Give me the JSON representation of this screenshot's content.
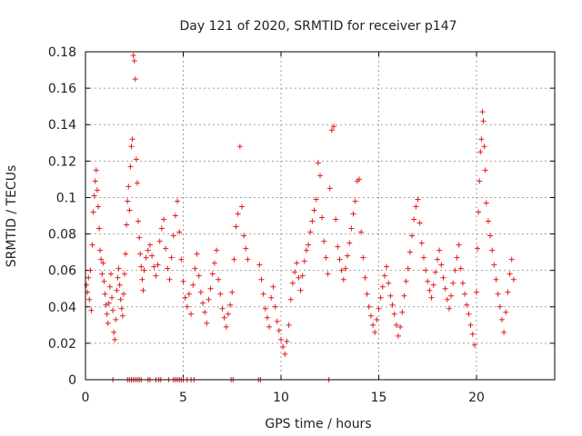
{
  "chart_data": {
    "type": "scatter",
    "title": "Day 121 of 2020, SRMTID for receiver p147",
    "xlabel": "GPS time / hours",
    "ylabel": "SRMTID / TECUs",
    "xlim": [
      0,
      24
    ],
    "ylim": [
      0,
      0.18
    ],
    "x_ticks": [
      0,
      5,
      10,
      15,
      20
    ],
    "x_tick_labels": [
      "0",
      "5",
      "10",
      "15",
      "20"
    ],
    "y_ticks": [
      0,
      0.02,
      0.04,
      0.06,
      0.08,
      0.1,
      0.12,
      0.14,
      0.16,
      0.18
    ],
    "y_tick_labels": [
      "0",
      "0.02",
      "0.04",
      "0.06",
      "0.08",
      "0.1",
      "0.12",
      "0.14",
      "0.16",
      "0.18"
    ],
    "grid": true,
    "marker": "+",
    "color": "#e31a1c",
    "series": [
      {
        "name": "SRMTID",
        "points": [
          [
            0.05,
            0.052
          ],
          [
            0.1,
            0.048
          ],
          [
            0.15,
            0.056
          ],
          [
            0.2,
            0.044
          ],
          [
            0.25,
            0.06
          ],
          [
            0.3,
            0.038
          ],
          [
            0.35,
            0.074
          ],
          [
            0.4,
            0.092
          ],
          [
            0.45,
            0.101
          ],
          [
            0.5,
            0.109
          ],
          [
            0.55,
            0.115
          ],
          [
            0.6,
            0.104
          ],
          [
            0.65,
            0.095
          ],
          [
            0.7,
            0.083
          ],
          [
            0.75,
            0.071
          ],
          [
            0.8,
            0.066
          ],
          [
            0.85,
            0.058
          ],
          [
            0.9,
            0.064
          ],
          [
            0.95,
            0.054
          ],
          [
            1.0,
            0.047
          ],
          [
            1.05,
            0.041
          ],
          [
            1.1,
            0.036
          ],
          [
            1.15,
            0.031
          ],
          [
            1.2,
            0.042
          ],
          [
            1.25,
            0.051
          ],
          [
            1.3,
            0.058
          ],
          [
            1.35,
            0.045
          ],
          [
            1.4,
            0.038
          ],
          [
            1.45,
            0.026
          ],
          [
            1.5,
            0.022
          ],
          [
            1.55,
            0.033
          ],
          [
            1.6,
            0.049
          ],
          [
            1.65,
            0.056
          ],
          [
            1.7,
            0.061
          ],
          [
            1.75,
            0.052
          ],
          [
            1.8,
            0.044
          ],
          [
            1.85,
            0.039
          ],
          [
            1.9,
            0.035
          ],
          [
            1.95,
            0.047
          ],
          [
            2.0,
            0.058
          ],
          [
            2.05,
            0.069
          ],
          [
            2.1,
            0.085
          ],
          [
            2.15,
            0.098
          ],
          [
            2.2,
            0.106
          ],
          [
            2.25,
            0.093
          ],
          [
            2.3,
            0.117
          ],
          [
            2.35,
            0.128
          ],
          [
            2.4,
            0.132
          ],
          [
            2.45,
            0.178
          ],
          [
            2.5,
            0.175
          ],
          [
            2.55,
            0.165
          ],
          [
            2.6,
            0.121
          ],
          [
            2.65,
            0.108
          ],
          [
            2.7,
            0.087
          ],
          [
            2.75,
            0.078
          ],
          [
            2.8,
            0.069
          ],
          [
            2.85,
            0.062
          ],
          [
            2.9,
            0.055
          ],
          [
            2.95,
            0.049
          ],
          [
            3.0,
            0.06
          ],
          [
            3.1,
            0.067
          ],
          [
            3.2,
            0.071
          ],
          [
            3.3,
            0.074
          ],
          [
            3.4,
            0.068
          ],
          [
            3.5,
            0.062
          ],
          [
            3.6,
            0.057
          ],
          [
            3.7,
            0.063
          ],
          [
            3.8,
            0.076
          ],
          [
            3.9,
            0.083
          ],
          [
            4.0,
            0.088
          ],
          [
            4.1,
            0.072
          ],
          [
            4.2,
            0.061
          ],
          [
            4.3,
            0.055
          ],
          [
            4.4,
            0.067
          ],
          [
            4.5,
            0.079
          ],
          [
            4.6,
            0.09
          ],
          [
            4.7,
            0.098
          ],
          [
            4.8,
            0.081
          ],
          [
            4.9,
            0.066
          ],
          [
            5.0,
            0.054
          ],
          [
            5.1,
            0.045
          ],
          [
            5.2,
            0.04
          ],
          [
            5.3,
            0.047
          ],
          [
            5.4,
            0.036
          ],
          [
            5.5,
            0.052
          ],
          [
            5.6,
            0.061
          ],
          [
            5.7,
            0.069
          ],
          [
            5.8,
            0.057
          ],
          [
            5.9,
            0.048
          ],
          [
            6.0,
            0.042
          ],
          [
            6.1,
            0.037
          ],
          [
            6.2,
            0.031
          ],
          [
            6.3,
            0.044
          ],
          [
            6.4,
            0.05
          ],
          [
            6.5,
            0.058
          ],
          [
            6.6,
            0.064
          ],
          [
            6.7,
            0.071
          ],
          [
            6.8,
            0.055
          ],
          [
            6.9,
            0.047
          ],
          [
            7.0,
            0.039
          ],
          [
            7.1,
            0.034
          ],
          [
            7.2,
            0.029
          ],
          [
            7.3,
            0.036
          ],
          [
            7.4,
            0.041
          ],
          [
            7.5,
            0.048
          ],
          [
            7.6,
            0.066
          ],
          [
            7.7,
            0.084
          ],
          [
            7.8,
            0.091
          ],
          [
            7.9,
            0.128
          ],
          [
            8.0,
            0.095
          ],
          [
            8.1,
            0.079
          ],
          [
            8.2,
            0.072
          ],
          [
            8.3,
            0.066
          ],
          [
            8.9,
            0.063
          ],
          [
            9.0,
            0.055
          ],
          [
            9.1,
            0.047
          ],
          [
            9.2,
            0.039
          ],
          [
            9.3,
            0.034
          ],
          [
            9.4,
            0.029
          ],
          [
            9.5,
            0.045
          ],
          [
            9.6,
            0.051
          ],
          [
            9.7,
            0.04
          ],
          [
            9.8,
            0.032
          ],
          [
            9.9,
            0.027
          ],
          [
            10.0,
            0.022
          ],
          [
            10.1,
            0.018
          ],
          [
            10.2,
            0.014
          ],
          [
            10.3,
            0.021
          ],
          [
            10.4,
            0.03
          ],
          [
            10.5,
            0.044
          ],
          [
            10.6,
            0.053
          ],
          [
            10.7,
            0.059
          ],
          [
            10.8,
            0.064
          ],
          [
            10.9,
            0.056
          ],
          [
            11.0,
            0.049
          ],
          [
            11.1,
            0.057
          ],
          [
            11.2,
            0.065
          ],
          [
            11.3,
            0.071
          ],
          [
            11.4,
            0.074
          ],
          [
            11.5,
            0.081
          ],
          [
            11.6,
            0.087
          ],
          [
            11.7,
            0.093
          ],
          [
            11.8,
            0.099
          ],
          [
            11.9,
            0.119
          ],
          [
            12.0,
            0.112
          ],
          [
            12.1,
            0.089
          ],
          [
            12.2,
            0.076
          ],
          [
            12.3,
            0.067
          ],
          [
            12.4,
            0.058
          ],
          [
            12.5,
            0.105
          ],
          [
            12.6,
            0.137
          ],
          [
            12.7,
            0.139
          ],
          [
            12.8,
            0.088
          ],
          [
            12.9,
            0.073
          ],
          [
            13.0,
            0.066
          ],
          [
            13.1,
            0.06
          ],
          [
            13.2,
            0.055
          ],
          [
            13.3,
            0.061
          ],
          [
            13.4,
            0.068
          ],
          [
            13.5,
            0.075
          ],
          [
            13.6,
            0.083
          ],
          [
            13.7,
            0.091
          ],
          [
            13.8,
            0.098
          ],
          [
            13.9,
            0.109
          ],
          [
            14.0,
            0.11
          ],
          [
            14.1,
            0.081
          ],
          [
            14.2,
            0.067
          ],
          [
            14.3,
            0.056
          ],
          [
            14.4,
            0.047
          ],
          [
            14.5,
            0.04
          ],
          [
            14.6,
            0.035
          ],
          [
            14.7,
            0.03
          ],
          [
            14.8,
            0.026
          ],
          [
            14.9,
            0.033
          ],
          [
            15.0,
            0.039
          ],
          [
            15.1,
            0.045
          ],
          [
            15.2,
            0.051
          ],
          [
            15.3,
            0.057
          ],
          [
            15.4,
            0.062
          ],
          [
            15.5,
            0.053
          ],
          [
            15.6,
            0.046
          ],
          [
            15.7,
            0.041
          ],
          [
            15.8,
            0.036
          ],
          [
            15.9,
            0.03
          ],
          [
            16.0,
            0.024
          ],
          [
            16.1,
            0.029
          ],
          [
            16.2,
            0.037
          ],
          [
            16.3,
            0.046
          ],
          [
            16.4,
            0.054
          ],
          [
            16.5,
            0.061
          ],
          [
            16.6,
            0.07
          ],
          [
            16.7,
            0.079
          ],
          [
            16.8,
            0.088
          ],
          [
            16.9,
            0.095
          ],
          [
            17.0,
            0.099
          ],
          [
            17.1,
            0.086
          ],
          [
            17.2,
            0.075
          ],
          [
            17.3,
            0.067
          ],
          [
            17.4,
            0.06
          ],
          [
            17.5,
            0.054
          ],
          [
            17.6,
            0.049
          ],
          [
            17.7,
            0.045
          ],
          [
            17.8,
            0.052
          ],
          [
            17.9,
            0.059
          ],
          [
            18.0,
            0.066
          ],
          [
            18.1,
            0.071
          ],
          [
            18.2,
            0.063
          ],
          [
            18.3,
            0.056
          ],
          [
            18.4,
            0.05
          ],
          [
            18.5,
            0.044
          ],
          [
            18.6,
            0.039
          ],
          [
            18.7,
            0.046
          ],
          [
            18.8,
            0.053
          ],
          [
            18.9,
            0.06
          ],
          [
            19.0,
            0.067
          ],
          [
            19.1,
            0.074
          ],
          [
            19.2,
            0.061
          ],
          [
            19.3,
            0.053
          ],
          [
            19.4,
            0.047
          ],
          [
            19.5,
            0.041
          ],
          [
            19.6,
            0.036
          ],
          [
            19.7,
            0.03
          ],
          [
            19.8,
            0.025
          ],
          [
            19.9,
            0.019
          ],
          [
            20.0,
            0.048
          ],
          [
            20.05,
            0.072
          ],
          [
            20.1,
            0.092
          ],
          [
            20.15,
            0.109
          ],
          [
            20.2,
            0.125
          ],
          [
            20.25,
            0.132
          ],
          [
            20.3,
            0.147
          ],
          [
            20.35,
            0.142
          ],
          [
            20.4,
            0.128
          ],
          [
            20.45,
            0.115
          ],
          [
            20.5,
            0.097
          ],
          [
            20.6,
            0.087
          ],
          [
            20.7,
            0.079
          ],
          [
            20.8,
            0.071
          ],
          [
            20.9,
            0.063
          ],
          [
            21.0,
            0.055
          ],
          [
            21.1,
            0.047
          ],
          [
            21.2,
            0.04
          ],
          [
            21.3,
            0.033
          ],
          [
            21.4,
            0.026
          ],
          [
            21.5,
            0.037
          ],
          [
            21.6,
            0.048
          ],
          [
            21.7,
            0.058
          ],
          [
            21.8,
            0.066
          ],
          [
            21.9,
            0.055
          ]
        ]
      },
      {
        "name": "zero values",
        "points": [
          [
            1.4,
            0
          ],
          [
            2.15,
            0
          ],
          [
            2.25,
            0
          ],
          [
            2.35,
            0
          ],
          [
            2.45,
            0
          ],
          [
            2.55,
            0
          ],
          [
            2.65,
            0
          ],
          [
            2.75,
            0
          ],
          [
            2.85,
            0
          ],
          [
            3.2,
            0
          ],
          [
            3.3,
            0
          ],
          [
            3.6,
            0
          ],
          [
            3.75,
            0
          ],
          [
            3.85,
            0
          ],
          [
            4.25,
            0
          ],
          [
            4.5,
            0
          ],
          [
            4.6,
            0
          ],
          [
            4.7,
            0
          ],
          [
            4.8,
            0
          ],
          [
            4.9,
            0
          ],
          [
            5.0,
            0
          ],
          [
            5.2,
            0
          ],
          [
            5.4,
            0
          ],
          [
            5.55,
            0
          ],
          [
            7.45,
            0
          ],
          [
            7.55,
            0
          ],
          [
            8.85,
            0
          ],
          [
            8.95,
            0
          ],
          [
            12.45,
            0
          ]
        ]
      }
    ]
  }
}
